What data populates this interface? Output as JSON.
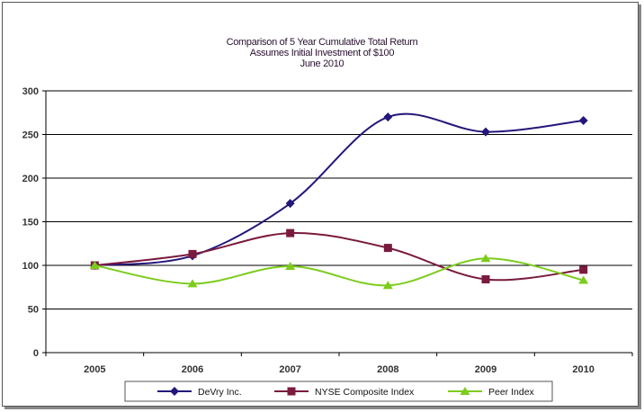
{
  "chart_data": {
    "type": "line",
    "title": [
      "Comparison of 5 Year Cumulative Total Return",
      "Assumes Initial Investment of $100",
      "June 2010"
    ],
    "categories": [
      "2005",
      "2006",
      "2007",
      "2008",
      "2009",
      "2010"
    ],
    "ylim": [
      0,
      300
    ],
    "yticks": [
      0,
      50,
      100,
      150,
      200,
      250,
      300
    ],
    "grid": true,
    "legend": "bottom",
    "series": [
      {
        "name": "DeVry Inc.",
        "color": "#24177a",
        "marker": "diamond",
        "values": [
          100,
          111,
          171,
          270,
          253,
          266
        ]
      },
      {
        "name": "NYSE Composite Index",
        "color": "#7a1a3e",
        "marker": "square",
        "values": [
          100,
          113,
          137,
          120,
          84,
          95
        ]
      },
      {
        "name": "Peer Index",
        "color": "#7ccc1c",
        "marker": "triangle",
        "values": [
          100,
          79,
          99,
          77,
          108,
          83
        ]
      }
    ]
  }
}
